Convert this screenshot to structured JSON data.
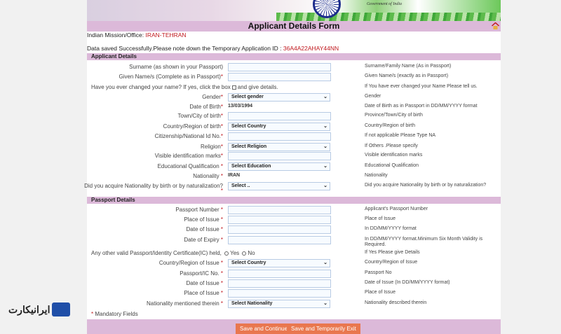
{
  "header": {
    "gov_text": "Government of India",
    "title": "Applicant Details Form",
    "home_icon": "home-icon"
  },
  "mission": {
    "label": "Indian Mission/Office:",
    "value": "IRAN-TEHRAN"
  },
  "saved": {
    "text": "Data saved Successfully.Please note down the Temporary Application ID :",
    "id": "36A4A22AHAY44NN"
  },
  "applicant": {
    "title": "Applicant Details",
    "surname": {
      "label": "Surname (as shown in your Passport)",
      "hint": "Surname/Family Name (As in Passport)"
    },
    "given": {
      "label": "Given Name/s (Complete as in Passport)*",
      "hint": "Given Name/s (exactly as in Passport)"
    },
    "changed": {
      "label": "Have you ever changed your name? If yes, click the box",
      "after": "and give details.",
      "hint": "If You have ever changed your Name Please tell us."
    },
    "gender": {
      "label": "Gender*",
      "value": "Select gender",
      "hint": "Gender"
    },
    "dob": {
      "label": "Date of Birth*",
      "value": "13/03/1994",
      "hint": "Date of Birth as in Passport in DD/MM/YYYY format"
    },
    "town": {
      "label": "Town/City of birth*",
      "hint": "Province/Town/City of birth"
    },
    "country": {
      "label": "Country/Region of birth*",
      "value": "Select Country",
      "hint": "Country/Region of birth"
    },
    "citizenship": {
      "label": "Citizenship/National Id No.*",
      "hint": "If not applicable Please Type NA"
    },
    "religion": {
      "label": "Religion*",
      "value": "Select Religion",
      "hint": "If Others .Please specify"
    },
    "marks": {
      "label": "Visible identification marks*",
      "hint": "Visible identification marks"
    },
    "education": {
      "label": "Educational Qualification *",
      "value": "Select Education",
      "hint": "Educational Qualification"
    },
    "nationality": {
      "label": "Nationality *",
      "value": "IRAN",
      "hint": "Nationality"
    },
    "acquire": {
      "label": "Did you acquire Nationality by birth or by naturalization?",
      "value": "Select ..",
      "hint": "Did you acquire Nationality by birth or by naturalization?"
    }
  },
  "passport": {
    "title": "Passport Details",
    "number": {
      "label": "Passport Number *",
      "hint": "Applicant's Passport Number"
    },
    "place": {
      "label": "Place of Issue *",
      "hint": "Place of Issue"
    },
    "doi": {
      "label": "Date of Issue *",
      "hint": "In DD/MM/YYYY format"
    },
    "doe": {
      "label": "Date of Expiry *",
      "hint": "In DD/MM/YYYY format.Minimum Six Month Validity is Required."
    },
    "other": {
      "label": "Any other valid Passport/Identity Certificate(IC) held,",
      "yes": "Yes",
      "no": "No",
      "hint": "If Yes Please give Details"
    },
    "ic_country": {
      "label": "Country/Region of Issue *",
      "value": "Select Country",
      "hint": "Country/Region of Issue"
    },
    "ic_no": {
      "label": "Passport/IC No. *",
      "hint": "Passport No"
    },
    "ic_doi": {
      "label": "Date of Issue *",
      "hint": "Date of Issue (In DD/MM/YYYY format)"
    },
    "ic_place": {
      "label": "Place of Issue *",
      "hint": "Place of Issue"
    },
    "ic_nat": {
      "label": "Nationality mentioned therein *",
      "value": "Select Nationality",
      "hint": "Nationality described therein"
    }
  },
  "mandatory": "Mandatory Fields",
  "buttons": {
    "save_continue": "Save and Continue",
    "save_exit": "Save and Temporarily Exit"
  },
  "watermark": {
    "text": "ایرانیکارت"
  },
  "colors": {
    "bar": "#dcb9d9",
    "button": "#e9774f",
    "accent_red": "#c0181e"
  }
}
